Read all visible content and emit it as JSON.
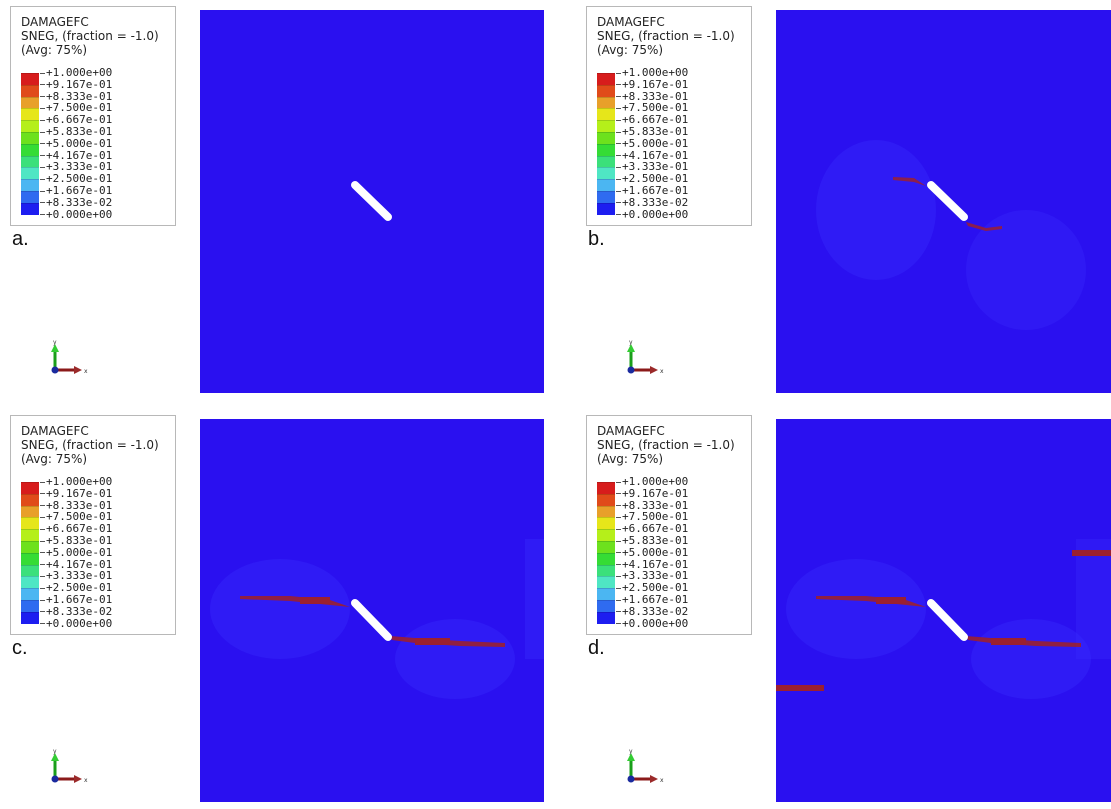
{
  "legend": {
    "title": "DAMAGEFC",
    "subtitle": "SNEG, (fraction = -1.0)",
    "avg": "(Avg: 75%)",
    "ticks": [
      "+1.000e+00",
      "+9.167e-01",
      "+8.333e-01",
      "+7.500e-01",
      "+6.667e-01",
      "+5.833e-01",
      "+5.000e-01",
      "+4.167e-01",
      "+3.333e-01",
      "+2.500e-01",
      "+1.667e-01",
      "+8.333e-02",
      "+0.000e+00"
    ],
    "colors": [
      "#d71c1c",
      "#e04b1a",
      "#e8a02a",
      "#e6e61a",
      "#b5ef1a",
      "#6de11d",
      "#35dc35",
      "#3be07b",
      "#4fe6c4",
      "#4bb6f2",
      "#2f6bf0",
      "#1d1df0"
    ]
  },
  "panels": [
    {
      "label": "a."
    },
    {
      "label": "b."
    },
    {
      "label": "c."
    },
    {
      "label": "d."
    }
  ],
  "axis": {
    "x": "x",
    "y": "y"
  },
  "colors": {
    "background": "#2a10f0",
    "damage": "#9b2030",
    "notch": "#ffffff"
  }
}
